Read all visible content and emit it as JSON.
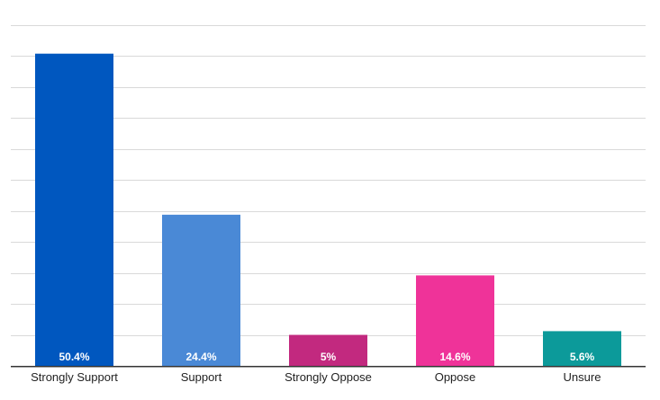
{
  "colors": {
    "background": "#ffffff",
    "gridline": "#d9d9d9",
    "axis": "#333333",
    "value_label": "#ffffff",
    "category_label": "#222222"
  },
  "chart_data": {
    "type": "bar",
    "title": "",
    "xlabel": "",
    "ylabel": "",
    "ylim": [
      0,
      55
    ],
    "grid": true,
    "grid_step": 5,
    "legend": "none",
    "categories": [
      "Strongly Support",
      "Support",
      "Strongly Oppose",
      "Oppose",
      "Unsure"
    ],
    "values": [
      50.4,
      24.4,
      5,
      14.6,
      5.6
    ],
    "value_labels": [
      "50.4%",
      "24.4%",
      "5%",
      "14.6%",
      "5.6%"
    ],
    "bar_colors": [
      "#0057bf",
      "#4a89d6",
      "#c2297f",
      "#ef3399",
      "#0c9a9a"
    ]
  }
}
